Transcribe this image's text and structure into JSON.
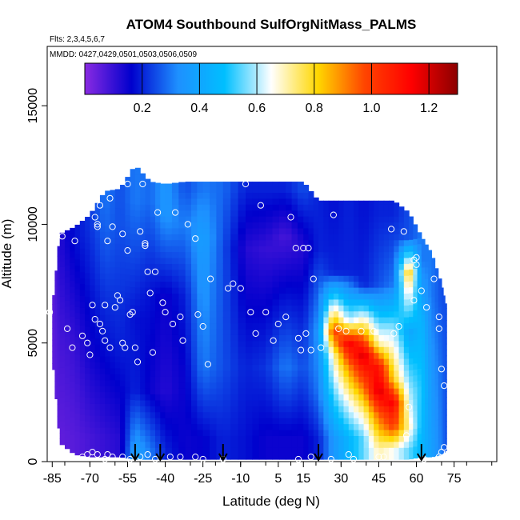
{
  "chart_data": {
    "type": "heatmap",
    "title": "ATOM4 Southbound SulfOrgNitMass_PALMS",
    "annotations": [
      "Flts: 2,3,4,5,6,7",
      "MMDD: 0427,0429,0501,0503,0506,0509"
    ],
    "xlabel": "Latitude (deg N)",
    "ylabel": "Altitude (m)",
    "xlim": [
      -87,
      92
    ],
    "ylim": [
      0,
      17500
    ],
    "x_ticks": [
      -85,
      -70,
      -55,
      -40,
      -25,
      -10,
      5,
      15,
      30,
      45,
      60,
      75
    ],
    "y_ticks": [
      0,
      5000,
      10000,
      15000
    ],
    "colorbar": {
      "range": [
        0,
        1.3
      ],
      "ticks": [
        0.2,
        0.4,
        0.6,
        0.8,
        1.0,
        1.2
      ],
      "tick_labels": [
        "0.2",
        "0.4",
        "0.6",
        "0.8",
        "1.0",
        "1.2"
      ],
      "colors": [
        "#8A2BE2",
        "#0000CD",
        "#1E90FF",
        "#00BFFF",
        "#FFFFFF",
        "#FFD700",
        "#FF4500",
        "#FF0000",
        "#8B0000"
      ]
    },
    "flight_arrows_lat": [
      -52,
      -42,
      -17,
      21,
      62
    ],
    "profiles": [
      {
        "lat": -85,
        "top": 6500,
        "bottom": 4500,
        "levels": [
          [
            5000,
            0.05
          ]
        ]
      },
      {
        "lat": -82,
        "top": 9600,
        "bottom": 800,
        "levels": [
          [
            1000,
            0.05
          ],
          [
            5000,
            0.08
          ],
          [
            9000,
            0.12
          ]
        ]
      },
      {
        "lat": -76,
        "top": 9900,
        "bottom": 300,
        "levels": [
          [
            1000,
            0.06
          ],
          [
            5000,
            0.1
          ],
          [
            9500,
            0.18
          ]
        ]
      },
      {
        "lat": -70,
        "top": 10400,
        "bottom": 200,
        "levels": [
          [
            1000,
            0.08
          ],
          [
            5000,
            0.15
          ],
          [
            10000,
            0.22
          ]
        ]
      },
      {
        "lat": -64,
        "top": 11400,
        "bottom": 200,
        "levels": [
          [
            1000,
            0.1
          ],
          [
            5000,
            0.18
          ],
          [
            10000,
            0.28
          ],
          [
            11300,
            0.3
          ]
        ]
      },
      {
        "lat": -58,
        "top": 11500,
        "bottom": 200,
        "levels": [
          [
            1000,
            0.12
          ],
          [
            5000,
            0.2
          ],
          [
            10000,
            0.25
          ]
        ]
      },
      {
        "lat": -52,
        "top": 12500,
        "bottom": 100,
        "levels": [
          [
            500,
            0.38
          ],
          [
            3000,
            0.2
          ],
          [
            6000,
            0.18
          ],
          [
            11000,
            0.3
          ]
        ]
      },
      {
        "lat": -46,
        "top": 11800,
        "bottom": 100,
        "levels": [
          [
            500,
            0.3
          ],
          [
            3000,
            0.15
          ],
          [
            7000,
            0.18
          ],
          [
            11000,
            0.28
          ]
        ]
      },
      {
        "lat": -40,
        "top": 11700,
        "bottom": 100,
        "levels": [
          [
            500,
            0.2
          ],
          [
            3000,
            0.12
          ],
          [
            7000,
            0.15
          ],
          [
            10500,
            0.35
          ]
        ]
      },
      {
        "lat": -32,
        "top": 11800,
        "bottom": 100,
        "levels": [
          [
            1000,
            0.15
          ],
          [
            4000,
            0.16
          ],
          [
            7000,
            0.2
          ],
          [
            10000,
            0.3
          ],
          [
            11500,
            0.25
          ]
        ]
      },
      {
        "lat": -25,
        "top": 11800,
        "bottom": 100,
        "levels": [
          [
            1000,
            0.16
          ],
          [
            4000,
            0.3
          ],
          [
            9500,
            0.38
          ],
          [
            11500,
            0.3
          ]
        ]
      },
      {
        "lat": -17,
        "top": 11800,
        "bottom": 100,
        "levels": [
          [
            1000,
            0.2
          ],
          [
            4000,
            0.25
          ],
          [
            9000,
            0.25
          ],
          [
            11500,
            0.28
          ]
        ]
      },
      {
        "lat": -8,
        "top": 11800,
        "bottom": 100,
        "levels": [
          [
            1000,
            0.18
          ],
          [
            4000,
            0.2
          ],
          [
            9000,
            0.12
          ],
          [
            11500,
            0.2
          ]
        ]
      },
      {
        "lat": 0,
        "top": 11800,
        "bottom": 100,
        "levels": [
          [
            1000,
            0.15
          ],
          [
            4000,
            0.22
          ],
          [
            9000,
            0.1
          ],
          [
            11500,
            0.2
          ]
        ]
      },
      {
        "lat": 8,
        "top": 11800,
        "bottom": 100,
        "levels": [
          [
            1000,
            0.15
          ],
          [
            4000,
            0.3
          ],
          [
            9500,
            0.08
          ],
          [
            11500,
            0.2
          ]
        ]
      },
      {
        "lat": 15,
        "top": 11800,
        "bottom": 100,
        "levels": [
          [
            1000,
            0.15
          ],
          [
            4000,
            0.25
          ],
          [
            9000,
            0.12
          ],
          [
            11500,
            0.25
          ]
        ]
      },
      {
        "lat": 21,
        "top": 11000,
        "bottom": 100,
        "levels": [
          [
            1000,
            0.2
          ],
          [
            3000,
            0.3
          ],
          [
            5500,
            0.35
          ],
          [
            9000,
            0.2
          ]
        ]
      },
      {
        "lat": 27,
        "top": 11000,
        "bottom": 100,
        "levels": [
          [
            1000,
            0.35
          ],
          [
            2500,
            0.5
          ],
          [
            4500,
            0.7
          ],
          [
            5500,
            1.0
          ],
          [
            8000,
            0.2
          ],
          [
            10500,
            0.18
          ]
        ]
      },
      {
        "lat": 33,
        "top": 11000,
        "bottom": 100,
        "levels": [
          [
            1000,
            0.45
          ],
          [
            2500,
            0.65
          ],
          [
            4000,
            0.9
          ],
          [
            5000,
            1.15
          ],
          [
            6000,
            0.6
          ],
          [
            8000,
            0.2
          ],
          [
            10500,
            0.2
          ]
        ]
      },
      {
        "lat": 39,
        "top": 11000,
        "bottom": 100,
        "levels": [
          [
            1000,
            0.55
          ],
          [
            2000,
            0.7
          ],
          [
            3500,
            1.0
          ],
          [
            4500,
            1.2
          ],
          [
            5500,
            0.85
          ],
          [
            7500,
            0.2
          ],
          [
            10500,
            0.18
          ]
        ]
      },
      {
        "lat": 45,
        "top": 11000,
        "bottom": 100,
        "levels": [
          [
            500,
            0.7
          ],
          [
            2000,
            0.95
          ],
          [
            3000,
            1.2
          ],
          [
            4000,
            1.1
          ],
          [
            5000,
            0.7
          ],
          [
            7500,
            0.25
          ],
          [
            10500,
            0.2
          ]
        ]
      },
      {
        "lat": 51,
        "top": 11000,
        "bottom": 100,
        "levels": [
          [
            500,
            0.65
          ],
          [
            1500,
            1.0
          ],
          [
            2500,
            1.15
          ],
          [
            3500,
            0.8
          ],
          [
            5500,
            0.6
          ],
          [
            7500,
            0.3
          ],
          [
            10500,
            0.2
          ]
        ]
      },
      {
        "lat": 57,
        "top": 10500,
        "bottom": 100,
        "levels": [
          [
            500,
            0.55
          ],
          [
            1500,
            0.7
          ],
          [
            3000,
            0.6
          ],
          [
            5500,
            0.4
          ],
          [
            7200,
            0.7
          ],
          [
            8000,
            0.85
          ],
          [
            9500,
            0.25
          ]
        ]
      },
      {
        "lat": 62,
        "top": 9500,
        "bottom": 200,
        "levels": [
          [
            500,
            0.45
          ],
          [
            3000,
            0.5
          ],
          [
            6000,
            0.45
          ],
          [
            8500,
            0.3
          ]
        ]
      },
      {
        "lat": 66,
        "top": 8800,
        "bottom": 200,
        "levels": [
          [
            500,
            0.38
          ],
          [
            4000,
            0.35
          ],
          [
            7000,
            0.3
          ]
        ]
      },
      {
        "lat": 70,
        "top": 7500,
        "bottom": 300,
        "levels": [
          [
            500,
            0.3
          ],
          [
            4000,
            0.28
          ],
          [
            7000,
            0.25
          ]
        ]
      },
      {
        "lat": 72,
        "top": 6500,
        "bottom": 500,
        "levels": [
          [
            1000,
            0.25
          ],
          [
            5000,
            0.25
          ]
        ]
      }
    ],
    "sample_points": [
      [
        -86,
        6300
      ],
      [
        -84,
        9500
      ],
      [
        -81,
        9500
      ],
      [
        -79,
        5600
      ],
      [
        -77,
        4800
      ],
      [
        -76,
        9300
      ],
      [
        -73,
        5300
      ],
      [
        -71,
        5000
      ],
      [
        -70,
        4500
      ],
      [
        -69,
        6600
      ],
      [
        -68,
        6000
      ],
      [
        -68,
        10300
      ],
      [
        -67,
        9900
      ],
      [
        -67,
        10000
      ],
      [
        -66,
        5800
      ],
      [
        -66,
        10800
      ],
      [
        -65,
        5500
      ],
      [
        -64,
        6600
      ],
      [
        -64,
        5100
      ],
      [
        -63,
        9300
      ],
      [
        -62,
        11100
      ],
      [
        -62,
        4800
      ],
      [
        -61,
        9900
      ],
      [
        -60,
        6500
      ],
      [
        -59,
        7000
      ],
      [
        -58,
        6800
      ],
      [
        -57,
        9600
      ],
      [
        -57,
        5000
      ],
      [
        -56,
        4800
      ],
      [
        -55,
        8900
      ],
      [
        -55,
        11700
      ],
      [
        -54,
        6200
      ],
      [
        -53,
        6300
      ],
      [
        -52,
        4800
      ],
      [
        -51,
        4200
      ],
      [
        -50,
        9700
      ],
      [
        -49,
        11700
      ],
      [
        -48,
        9100
      ],
      [
        -48,
        9200
      ],
      [
        -47,
        8000
      ],
      [
        -46,
        7100
      ],
      [
        -45,
        4600
      ],
      [
        -44,
        8000
      ],
      [
        -43,
        10500
      ],
      [
        -41,
        6700
      ],
      [
        -40,
        6300
      ],
      [
        -37,
        5800
      ],
      [
        -36,
        10500
      ],
      [
        -34,
        6100
      ],
      [
        -33,
        5100
      ],
      [
        -31,
        10000
      ],
      [
        -28,
        9400
      ],
      [
        -27,
        6200
      ],
      [
        -25,
        5700
      ],
      [
        -23,
        4100
      ],
      [
        -22,
        7700
      ],
      [
        -15,
        7300
      ],
      [
        -13,
        7500
      ],
      [
        -10,
        7300
      ],
      [
        -8,
        11700
      ],
      [
        -6,
        6300
      ],
      [
        -4,
        5400
      ],
      [
        -2,
        10800
      ],
      [
        0,
        6300
      ],
      [
        3,
        5100
      ],
      [
        5,
        5800
      ],
      [
        8,
        6100
      ],
      [
        10,
        10300
      ],
      [
        12,
        9000
      ],
      [
        13,
        5200
      ],
      [
        14,
        4700
      ],
      [
        15,
        9000
      ],
      [
        16,
        5400
      ],
      [
        17,
        9000
      ],
      [
        18,
        4700
      ],
      [
        19,
        7700
      ],
      [
        22,
        4800
      ],
      [
        24,
        11700
      ],
      [
        27,
        10400
      ],
      [
        29,
        5600
      ],
      [
        32,
        5500
      ],
      [
        38,
        5500
      ],
      [
        43,
        5500
      ],
      [
        50,
        9800
      ],
      [
        51,
        5400
      ],
      [
        53,
        5700
      ],
      [
        55,
        9700
      ],
      [
        56,
        11200
      ],
      [
        59,
        8500
      ],
      [
        59,
        6800
      ],
      [
        60,
        8600
      ],
      [
        60,
        8300
      ],
      [
        62,
        7200
      ],
      [
        64,
        6500
      ],
      [
        67,
        7700
      ],
      [
        69,
        5600
      ],
      [
        69,
        6100
      ],
      [
        70,
        3900
      ],
      [
        71,
        3200
      ],
      [
        71,
        600
      ],
      [
        57,
        2300
      ],
      [
        56,
        1100
      ]
    ],
    "surface_points": [
      [
        -81,
        200
      ],
      [
        -73,
        200
      ],
      [
        -71,
        300
      ],
      [
        -69,
        400
      ],
      [
        -67,
        300
      ],
      [
        -64,
        100
      ],
      [
        -63,
        300
      ],
      [
        -61,
        200
      ],
      [
        -57,
        200
      ],
      [
        -54,
        100
      ],
      [
        -50,
        200
      ],
      [
        -47,
        300
      ],
      [
        -44,
        100
      ],
      [
        -38,
        200
      ],
      [
        -34,
        200
      ],
      [
        -28,
        200
      ],
      [
        -25,
        100
      ],
      [
        -17,
        100
      ],
      [
        13,
        100
      ],
      [
        18,
        200
      ],
      [
        26,
        100
      ],
      [
        33,
        300
      ],
      [
        35,
        100
      ],
      [
        45,
        200
      ],
      [
        47,
        200
      ],
      [
        63,
        100
      ],
      [
        69,
        200
      ],
      [
        70,
        400
      ]
    ]
  }
}
